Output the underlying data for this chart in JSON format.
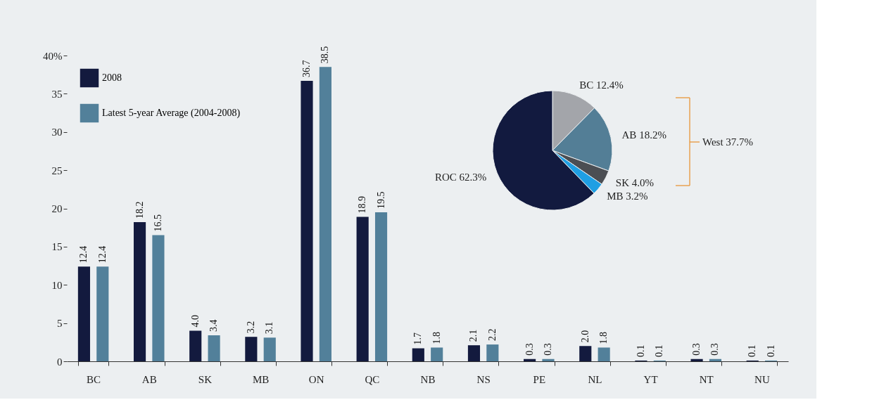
{
  "chart_data": [
    {
      "type": "bar",
      "categories": [
        "BC",
        "AB",
        "SK",
        "MB",
        "ON",
        "QC",
        "NB",
        "NS",
        "PE",
        "NL",
        "YT",
        "NT",
        "NU"
      ],
      "series": [
        {
          "name": "2008",
          "color": "#131a3e",
          "values": [
            12.4,
            18.2,
            4.0,
            3.2,
            36.7,
            18.9,
            1.7,
            2.1,
            0.3,
            2.0,
            0.1,
            0.3,
            0.1
          ],
          "value_labels": [
            "12.4",
            "18.2",
            "4.0",
            "3.2",
            "36.7",
            "18.9",
            "1.7",
            "2.1",
            "0.3",
            "2.0",
            "0.1",
            "0.3",
            "0.1"
          ]
        },
        {
          "name": "Latest 5-year Average (2004-2008)",
          "color": "#52809a",
          "values": [
            12.4,
            16.5,
            3.4,
            3.1,
            38.5,
            19.5,
            1.8,
            2.2,
            0.3,
            1.8,
            0.1,
            0.3,
            0.1
          ],
          "value_labels": [
            "12.4",
            "16.5",
            "3.4",
            "3.1",
            "38.5",
            "19.5",
            "1.8",
            "2.2",
            "0.3",
            "1.8",
            "0.1",
            "0.3",
            "0.1"
          ]
        }
      ],
      "ylim": [
        0,
        40
      ],
      "yticks": [
        0,
        5,
        10,
        15,
        20,
        25,
        30,
        35,
        {
          "value": 40,
          "label": "40%"
        }
      ],
      "legend": "top left",
      "grid": false
    },
    {
      "type": "pie",
      "categories": [
        "BC",
        "AB",
        "SK",
        "MB",
        "ROC"
      ],
      "values": [
        12.4,
        18.2,
        4.0,
        3.2,
        62.3
      ],
      "colors": [
        "#a3a5aa",
        "#537e96",
        "#4b4e53",
        "#1f9fe3",
        "#121a3f"
      ],
      "value_labels": [
        "12.4%",
        "18.2%",
        "4.0%",
        "3.2%",
        "62.3%"
      ],
      "annotations": [
        "West 37.7%"
      ]
    }
  ]
}
